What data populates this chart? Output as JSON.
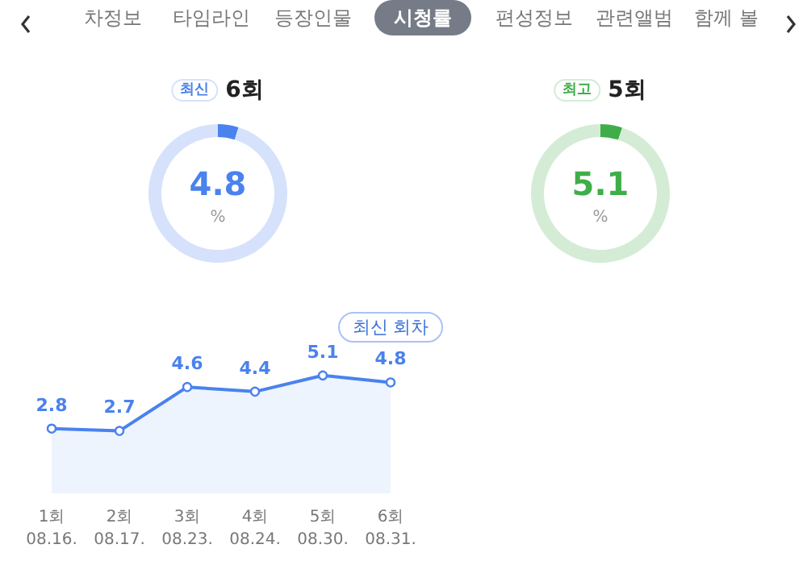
{
  "chart_data": [
    {
      "type": "other",
      "annotations": [
        "차정보",
        "타임라인",
        "등장인물",
        "시청률",
        "편성정보",
        "관련앨범",
        "함께 볼"
      ]
    },
    {
      "type": "donut",
      "title": "6회",
      "subtitle": "최신",
      "categories": [
        null,
        null
      ],
      "values": [
        4.8,
        95.2
      ],
      "colors": [
        "#4a82ee",
        "#d6e2fc"
      ],
      "value_labels": [
        "4.8",
        null
      ],
      "annotations": [
        "%"
      ]
    },
    {
      "type": "donut",
      "title": "5회",
      "subtitle": "최고",
      "categories": [
        null,
        null
      ],
      "values": [
        5.1,
        94.9
      ],
      "colors": [
        "#3fae49",
        "#d4ecd5"
      ],
      "value_labels": [
        "5.1",
        null
      ],
      "annotations": [
        "%"
      ]
    },
    {
      "type": "area",
      "categories": [
        "1회\n08.16.",
        "2회\n08.17.",
        "3회\n08.23.",
        "4회\n08.24.",
        "5회\n08.30.",
        "6회\n08.31.",
        null,
        null,
        null,
        null,
        null
      ],
      "series": [
        {
          "color": "#4a82ee",
          "values": [
            2.8,
            2.7,
            4.6,
            4.4,
            5.1,
            4.8,
            null,
            null,
            null,
            null,
            null
          ]
        }
      ],
      "data_labels": true,
      "marker": "circle",
      "tick_labels": "x",
      "annotations": [
        "최신 회차"
      ]
    }
  ]
}
